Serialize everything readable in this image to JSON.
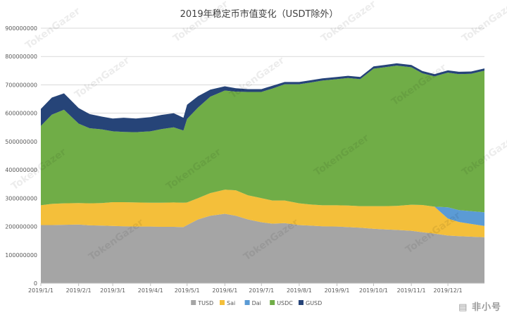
{
  "chart_data": {
    "type": "area",
    "stacked": true,
    "title": "2019年稳定币市值变化（USDT除外）",
    "ylim": [
      0,
      900000000
    ],
    "yticks": [
      0,
      100000000,
      200000000,
      300000000,
      400000000,
      500000000,
      600000000,
      700000000,
      800000000,
      900000000
    ],
    "ytick_labels": [
      "0",
      "100000000",
      "200000000",
      "300000000",
      "400000000",
      "500000000",
      "600000000",
      "700000000",
      "800000000",
      "900000000"
    ],
    "xlim": [
      "2019-01-01",
      "2019-12-31"
    ],
    "xticks": [
      "2019-01-01",
      "2019-02-01",
      "2019-03-01",
      "2019-04-01",
      "2019-05-01",
      "2019-06-01",
      "2019-07-01",
      "2019-08-01",
      "2019-09-01",
      "2019-10-01",
      "2019-11-01",
      "2019-12-01"
    ],
    "xtick_labels": [
      "2019/1/1",
      "2019/2/1",
      "2019/3/1",
      "2019/4/1",
      "2019/5/1",
      "2019/6/1",
      "2019/7/1",
      "2019/8/1",
      "2019/9/1",
      "2019/10/1",
      "2019/11/1",
      "2019/12/1"
    ],
    "grid": "horizontal",
    "legend_position": "bottom",
    "x": [
      "2019-01-01",
      "2019-01-10",
      "2019-01-20",
      "2019-02-01",
      "2019-02-10",
      "2019-02-20",
      "2019-03-01",
      "2019-03-10",
      "2019-03-20",
      "2019-04-01",
      "2019-04-10",
      "2019-04-20",
      "2019-04-28",
      "2019-05-01",
      "2019-05-10",
      "2019-05-20",
      "2019-06-01",
      "2019-06-10",
      "2019-06-20",
      "2019-07-01",
      "2019-07-10",
      "2019-07-20",
      "2019-08-01",
      "2019-08-10",
      "2019-08-20",
      "2019-09-01",
      "2019-09-10",
      "2019-09-20",
      "2019-10-01",
      "2019-10-10",
      "2019-10-20",
      "2019-11-01",
      "2019-11-10",
      "2019-11-20",
      "2019-12-01",
      "2019-12-10",
      "2019-12-20",
      "2019-12-31"
    ],
    "series": [
      {
        "name": "TUSD",
        "color": "#a5a5a5",
        "values": [
          205000000,
          205000000,
          206000000,
          207000000,
          204000000,
          203000000,
          202000000,
          201000000,
          200000000,
          200000000,
          199000000,
          199000000,
          198000000,
          205000000,
          225000000,
          238000000,
          245000000,
          238000000,
          225000000,
          215000000,
          210000000,
          212000000,
          205000000,
          203000000,
          201000000,
          200000000,
          198000000,
          196000000,
          192000000,
          190000000,
          188000000,
          185000000,
          180000000,
          175000000,
          168000000,
          166000000,
          164000000,
          162000000
        ]
      },
      {
        "name": "Sai",
        "color": "#f4bf3a",
        "values": [
          70000000,
          75000000,
          76000000,
          76000000,
          78000000,
          80000000,
          84000000,
          85000000,
          85000000,
          84000000,
          85000000,
          86000000,
          86000000,
          80000000,
          75000000,
          80000000,
          85000000,
          90000000,
          85000000,
          85000000,
          82000000,
          80000000,
          77000000,
          75000000,
          74000000,
          75000000,
          76000000,
          76000000,
          80000000,
          82000000,
          85000000,
          92000000,
          96000000,
          95000000,
          60000000,
          50000000,
          45000000,
          40000000
        ]
      },
      {
        "name": "Dai",
        "color": "#5b9bd5",
        "values": [
          0,
          0,
          0,
          0,
          0,
          0,
          0,
          0,
          0,
          0,
          0,
          0,
          0,
          0,
          0,
          0,
          0,
          0,
          0,
          0,
          0,
          0,
          0,
          0,
          0,
          0,
          0,
          0,
          0,
          0,
          0,
          0,
          0,
          0,
          40000000,
          42000000,
          45000000,
          48000000
        ]
      },
      {
        "name": "USDC",
        "color": "#70ad47",
        "values": [
          280000000,
          315000000,
          330000000,
          280000000,
          265000000,
          260000000,
          250000000,
          248000000,
          248000000,
          252000000,
          260000000,
          265000000,
          255000000,
          295000000,
          320000000,
          340000000,
          350000000,
          348000000,
          365000000,
          375000000,
          395000000,
          410000000,
          420000000,
          430000000,
          440000000,
          445000000,
          450000000,
          448000000,
          485000000,
          490000000,
          495000000,
          485000000,
          465000000,
          460000000,
          475000000,
          480000000,
          485000000,
          500000000
        ]
      },
      {
        "name": "GUSD",
        "color": "#264478",
        "values": [
          60000000,
          60000000,
          58000000,
          55000000,
          50000000,
          45000000,
          45000000,
          50000000,
          48000000,
          50000000,
          50000000,
          50000000,
          45000000,
          50000000,
          40000000,
          25000000,
          15000000,
          12000000,
          10000000,
          10000000,
          10000000,
          8000000,
          8000000,
          8000000,
          8000000,
          8000000,
          8000000,
          8000000,
          8000000,
          8000000,
          8000000,
          8000000,
          8000000,
          8000000,
          8000000,
          8000000,
          8000000,
          8000000
        ]
      }
    ]
  },
  "watermark_text": "TokenGazer",
  "logo_text": "非小号"
}
